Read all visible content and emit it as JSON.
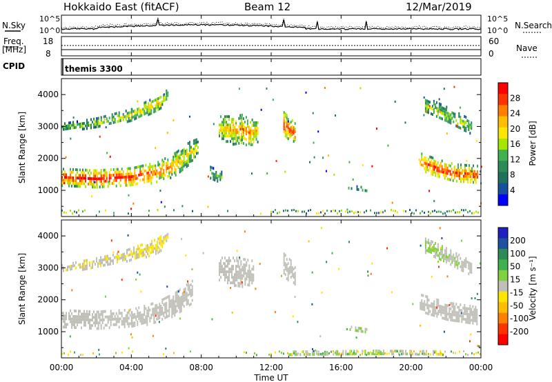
{
  "header": {
    "title": "Hokkaido East (fitACF)",
    "beam": "Beam 12",
    "date": "12/Mar/2019"
  },
  "noise_panel": {
    "left_label": "N.Sky",
    "right_label": "N.Search",
    "ticks": [
      "10^5",
      "10^0"
    ]
  },
  "freq_panel": {
    "left_label": "Freq.",
    "left_unit": "[MHz]",
    "left_ticks": [
      "18",
      "8"
    ],
    "right_label": "Nave",
    "right_ticks": [
      "60",
      "0"
    ]
  },
  "cpid_panel": {
    "label": "CPID",
    "program": "themis 3300"
  },
  "time_axis": {
    "label": "Time UT",
    "ticks": [
      "00:00",
      "04:00",
      "08:00",
      "12:00",
      "16:00",
      "20:00",
      "00:00"
    ]
  },
  "power_colorbar": {
    "label": "Power [dB]",
    "ticks": [
      "28",
      "24",
      "20",
      "16",
      "12",
      "8",
      "4"
    ],
    "colors": [
      "#ff0000",
      "#ff3300",
      "#ff7f00",
      "#ffbf00",
      "#ffe600",
      "#a6e600",
      "#40b050",
      "#2e8a57",
      "#207060",
      "#1850a0",
      "#0000ff"
    ]
  },
  "velocity_colorbar": {
    "label": "Velocity [m s⁻¹]",
    "ticks": [
      "200",
      "100",
      "50",
      "15",
      "-15",
      "-50",
      "-100",
      "-200"
    ],
    "colors": [
      "#2020c0",
      "#2050a0",
      "#2e8a57",
      "#40b050",
      "#80d040",
      "#c0c0b8",
      "#ffe600",
      "#ffbf00",
      "#ff7f00",
      "#ff3300",
      "#ff0000"
    ]
  },
  "chart_data": [
    {
      "type": "heatmap",
      "title": "Power",
      "xlabel": "Time UT",
      "ylabel": "Slant Range [km]",
      "xlim": [
        0,
        24
      ],
      "ylim": [
        180,
        4500
      ],
      "yticks": [
        1000,
        2000,
        3000,
        4000
      ],
      "colorbar": "Power [dB]",
      "clim": [
        0,
        30
      ],
      "regions": [
        {
          "name": "main band",
          "points": [
            [
              0,
              1450,
              260,
              27
            ],
            [
              2,
              1400,
              260,
              29
            ],
            [
              4,
              1450,
              280,
              28
            ],
            [
              5.5,
              1600,
              320,
              24
            ],
            [
              6.5,
              1850,
              360,
              21
            ],
            [
              7.3,
              2200,
              350,
              18
            ],
            [
              7.8,
              2400,
              250,
              16
            ]
          ]
        },
        {
          "name": "upper band",
          "points": [
            [
              0,
              3000,
              120,
              13
            ],
            [
              2,
              3150,
              140,
              15
            ],
            [
              4,
              3400,
              180,
              17
            ],
            [
              5.5,
              3750,
              250,
              19
            ],
            [
              6.1,
              4050,
              150,
              15
            ]
          ]
        },
        {
          "name": "streaks",
          "points": [
            [
              9,
              3000,
              350,
              19
            ],
            [
              9.8,
              2900,
              450,
              21
            ],
            [
              10.3,
              2950,
              450,
              22
            ],
            [
              10.8,
              2800,
              450,
              23
            ],
            [
              11.2,
              2900,
              350,
              19
            ]
          ]
        },
        {
          "name": "post-noon echo",
          "points": [
            [
              12.7,
              3100,
              380,
              26
            ],
            [
              13.4,
              2800,
              300,
              25
            ]
          ]
        },
        {
          "name": "post-midnight patch",
          "points": [
            [
              8.5,
              1550,
              220,
              13
            ],
            [
              9.2,
              1450,
              150,
              12
            ]
          ]
        },
        {
          "name": "evening band",
          "points": [
            [
              16.4,
              1150,
              50,
              13
            ],
            [
              17.5,
              1050,
              60,
              12
            ]
          ]
        },
        {
          "name": "late main band",
          "points": [
            [
              20.5,
              1950,
              250,
              24
            ],
            [
              21.5,
              1700,
              300,
              28
            ],
            [
              22.5,
              1550,
              300,
              26
            ],
            [
              23.8,
              1500,
              300,
              25
            ]
          ]
        },
        {
          "name": "late upper band",
          "points": [
            [
              20.8,
              3700,
              250,
              16
            ],
            [
              22,
              3400,
              250,
              15
            ],
            [
              23.5,
              3000,
              220,
              14
            ]
          ]
        }
      ]
    },
    {
      "type": "heatmap",
      "title": "Velocity",
      "xlabel": "Time UT",
      "ylabel": "Slant Range [km]",
      "xlim": [
        0,
        24
      ],
      "ylim": [
        180,
        4500
      ],
      "yticks": [
        1000,
        2000,
        3000,
        4000
      ],
      "colorbar": "Velocity [m s⁻¹]",
      "clim": [
        -250,
        250
      ],
      "regions": [
        {
          "name": "main band",
          "points": [
            [
              0,
              1450,
              260,
              0
            ],
            [
              2,
              1400,
              260,
              0
            ],
            [
              4,
              1450,
              280,
              0
            ],
            [
              5.5,
              1650,
              320,
              0
            ],
            [
              6.5,
              1900,
              360,
              0
            ],
            [
              7.5,
              2300,
              350,
              0
            ]
          ]
        },
        {
          "name": "upper band",
          "points": [
            [
              0,
              3000,
              120,
              -20
            ],
            [
              3,
              3300,
              150,
              -20
            ],
            [
              5.5,
              3700,
              250,
              -40
            ],
            [
              6.1,
              4050,
              150,
              -30
            ]
          ]
        },
        {
          "name": "streaks",
          "points": [
            [
              9,
              3000,
              350,
              0
            ],
            [
              10,
              2900,
              450,
              0
            ],
            [
              11,
              2850,
              400,
              0
            ]
          ]
        },
        {
          "name": "post-noon echo",
          "points": [
            [
              12.7,
              3100,
              380,
              0
            ],
            [
              13.4,
              2800,
              300,
              0
            ]
          ]
        },
        {
          "name": "evening band",
          "points": [
            [
              16.4,
              1150,
              50,
              60
            ],
            [
              17.5,
              1050,
              60,
              40
            ]
          ]
        },
        {
          "name": "late main band",
          "points": [
            [
              20.5,
              1950,
              250,
              0
            ],
            [
              22,
              1650,
              300,
              0
            ],
            [
              23.8,
              1500,
              300,
              0
            ]
          ]
        },
        {
          "name": "late upper band",
          "points": [
            [
              20.8,
              3700,
              250,
              40
            ],
            [
              22,
              3400,
              250,
              20
            ],
            [
              23.5,
              3000,
              220,
              0
            ]
          ]
        },
        {
          "name": "ground scatter",
          "points": [
            [
              13,
              350,
              60,
              30
            ],
            [
              18,
              380,
              60,
              60
            ],
            [
              22,
              360,
              60,
              -40
            ]
          ]
        }
      ]
    }
  ]
}
